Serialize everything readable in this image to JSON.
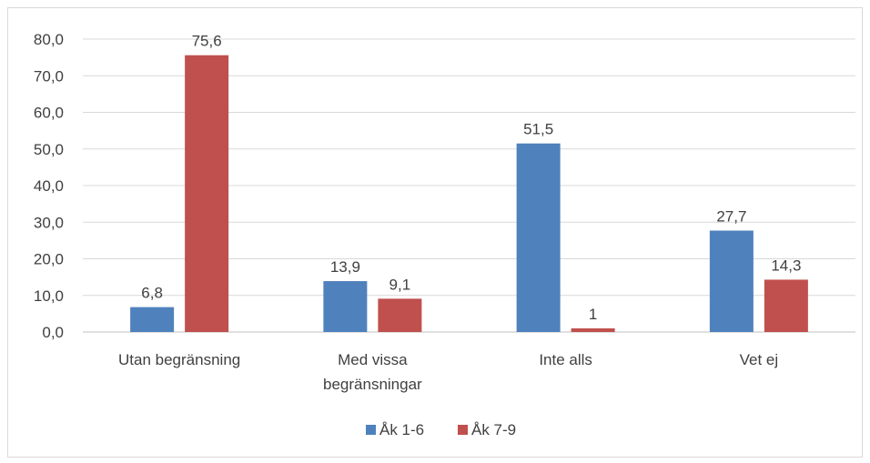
{
  "chart_data": {
    "type": "bar",
    "title": "",
    "xlabel": "",
    "ylabel": "",
    "categories": [
      [
        "Utan begränsning"
      ],
      [
        "Med vissa",
        "begränsningar"
      ],
      [
        "Inte alls"
      ],
      [
        "Vet ej"
      ]
    ],
    "series": [
      {
        "name": "Åk 1-6",
        "color": "#4f81bd",
        "values": [
          6.8,
          13.9,
          51.5,
          27.7
        ],
        "labels": [
          "6,8",
          "13,9",
          "51,5",
          "27,7"
        ]
      },
      {
        "name": "Åk 7-9",
        "color": "#c0504d",
        "values": [
          75.6,
          9.1,
          1,
          14.3
        ],
        "labels": [
          "75,6",
          "9,1",
          "1",
          "14,3"
        ]
      }
    ],
    "ylim": [
      0,
      80
    ],
    "yticks": [
      "0,0",
      "10,0",
      "20,0",
      "30,0",
      "40,0",
      "50,0",
      "60,0",
      "70,0",
      "80,0"
    ],
    "grid": true,
    "legend": "bottom"
  }
}
